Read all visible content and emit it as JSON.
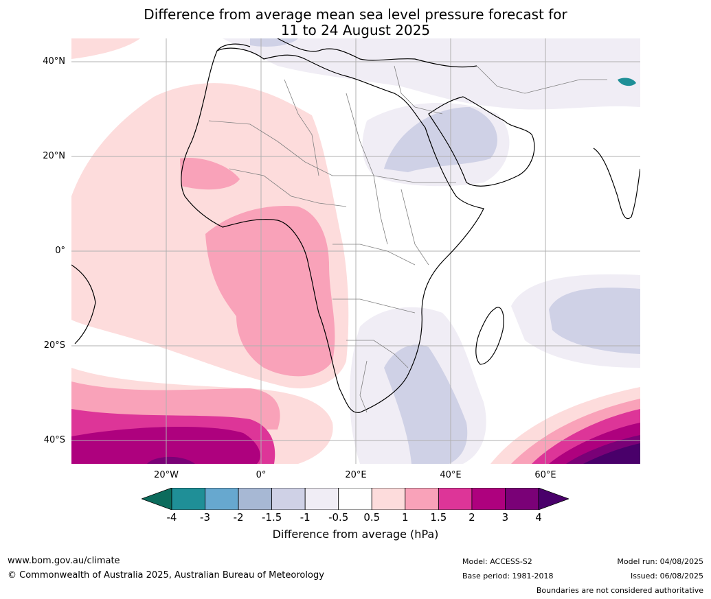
{
  "header": {
    "title_line1": "Difference from average mean sea level pressure forecast for",
    "title_line2": "11 to 24 August 2025"
  },
  "map": {
    "lat_labels": [
      "40°N",
      "20°N",
      "0°",
      "20°S",
      "40°S"
    ],
    "lon_labels": [
      "20°W",
      "0°",
      "20°E",
      "40°E",
      "60°E"
    ],
    "colors": {
      "ocean": "#ffffff",
      "neg4": "#0c6b5c",
      "neg3": "#1f8f97",
      "neg2": "#67a8cf",
      "neg15": "#a7b8d4",
      "neg1": "#cfd1e6",
      "neg05": "#f0edf5",
      "zero": "#ffffff",
      "pos05": "#fddcdc",
      "pos1": "#f9a2b9",
      "pos15": "#dd3598",
      "pos2": "#ae017e",
      "pos3": "#7a0177",
      "pos4": "#49006a",
      "coast": "#000000",
      "borders": "#808080",
      "grid": "#b0b0b0"
    }
  },
  "colorbar": {
    "title": "Difference from average (hPa)",
    "ticks": [
      "-4",
      "-3",
      "-2",
      "-1.5",
      "-1",
      "-0.5",
      "0.5",
      "1",
      "1.5",
      "2",
      "3",
      "4"
    ],
    "bins": [
      "#1f8f97",
      "#67a8cf",
      "#a7b8d4",
      "#cfd1e6",
      "#f0edf5",
      "#ffffff",
      "#fddcdc",
      "#f9a2b9",
      "#dd3598",
      "#ae017e",
      "#7a0177"
    ],
    "under_color": "#0c6b5c",
    "over_color": "#49006a"
  },
  "footer": {
    "website": "www.bom.gov.au/climate",
    "copyright": "© Commonwealth of Australia 2025, Australian Bureau of Meteorology",
    "model": "Model: ACCESS-S2",
    "base_period": "Base period: 1981-2018",
    "model_run": "Model run: 04/08/2025",
    "issued": "Issued: 06/08/2025",
    "disclaimer": "Boundaries are not considered authoritative"
  }
}
